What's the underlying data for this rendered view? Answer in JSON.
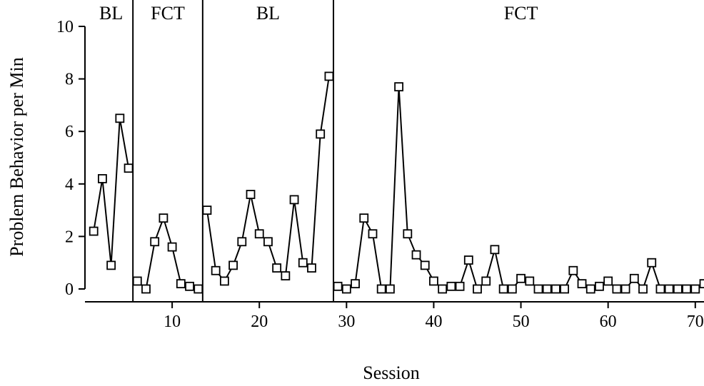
{
  "chart_data": {
    "type": "line",
    "xlabel": "Session",
    "ylabel": "Problem Behavior per Min",
    "xlim": [
      0,
      71
    ],
    "ylim": [
      0,
      10
    ],
    "x_ticks": [
      10,
      20,
      30,
      40,
      50,
      60,
      70
    ],
    "y_ticks": [
      0,
      2,
      4,
      6,
      8,
      10
    ],
    "grid": false,
    "marker": "open-square",
    "line_color": "#000000",
    "phases": [
      {
        "label": "BL",
        "start": 1,
        "end": 5
      },
      {
        "label": "FCT",
        "start": 6,
        "end": 13
      },
      {
        "label": "BL",
        "start": 14,
        "end": 28
      },
      {
        "label": "FCT",
        "start": 29,
        "end": 71
      }
    ],
    "phase_change_lines": [
      5.5,
      13.5,
      28.5
    ],
    "segments": [
      {
        "x": [
          1,
          2,
          3,
          4,
          5
        ],
        "y": [
          2.2,
          4.2,
          0.9,
          6.5,
          4.6
        ]
      },
      {
        "x": [
          6,
          7,
          8,
          9,
          10,
          11,
          12,
          13
        ],
        "y": [
          0.3,
          0,
          1.8,
          2.7,
          1.6,
          0.2,
          0.1,
          0
        ]
      },
      {
        "x": [
          14,
          15,
          16,
          17,
          18,
          19,
          20,
          21,
          22,
          23,
          24,
          25,
          26,
          27,
          28
        ],
        "y": [
          3.0,
          0.7,
          0.3,
          0.9,
          1.8,
          3.6,
          2.1,
          1.8,
          0.8,
          0.5,
          3.4,
          1.0,
          0.8,
          5.9,
          8.1
        ]
      },
      {
        "x": [
          29,
          30,
          31,
          32,
          33,
          34,
          35,
          36,
          37,
          38,
          39,
          40,
          41,
          42,
          43,
          44,
          45,
          46,
          47,
          48,
          49,
          50,
          51,
          52,
          53,
          54,
          55,
          56,
          57,
          58,
          59,
          60,
          61,
          62,
          63,
          64,
          65,
          66,
          67,
          68,
          69,
          70,
          71
        ],
        "y": [
          0.1,
          0,
          0.2,
          2.7,
          2.1,
          0,
          0,
          7.7,
          2.1,
          1.3,
          0.9,
          0.3,
          0,
          0.1,
          0.1,
          1.1,
          0,
          0.3,
          1.5,
          0,
          0,
          0.4,
          0.3,
          0,
          0,
          0,
          0,
          0.7,
          0.2,
          0,
          0.1,
          0.3,
          0,
          0,
          0.4,
          0,
          1.0,
          0,
          0,
          0,
          0,
          0,
          0.2
        ]
      }
    ]
  }
}
